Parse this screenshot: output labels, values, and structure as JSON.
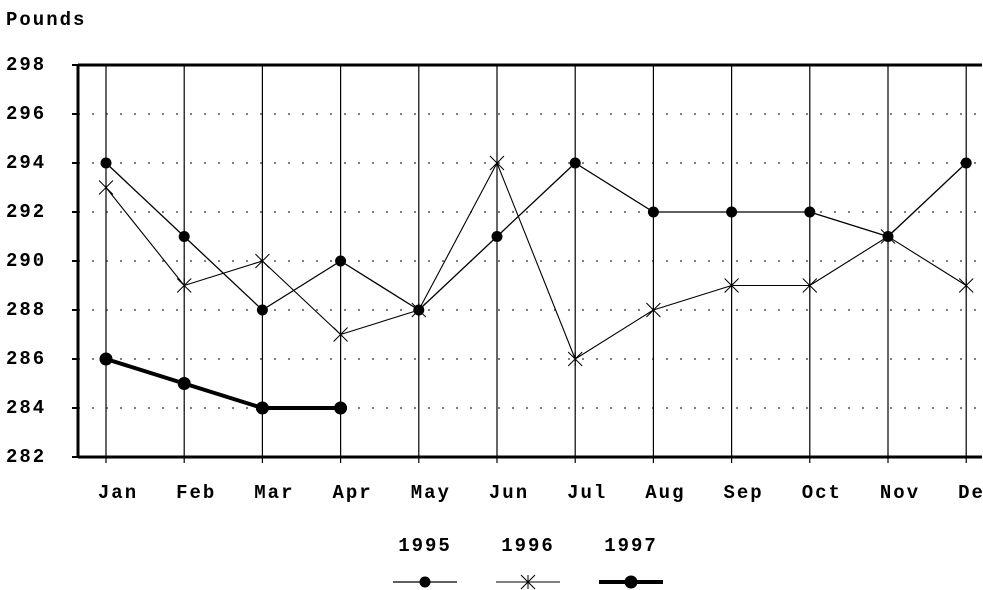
{
  "chart_data": {
    "type": "line",
    "y_label": "Pounds",
    "categories": [
      "Jan",
      "Feb",
      "Mar",
      "Apr",
      "May",
      "Jun",
      "Jul",
      "Aug",
      "Sep",
      "Oct",
      "Nov",
      "Dec"
    ],
    "series": [
      {
        "name": "1995",
        "color": "#000000",
        "marker": "dot",
        "line_width": 1.3,
        "values": [
          294,
          291,
          288,
          290,
          288,
          291,
          294,
          292,
          292,
          292,
          291,
          294
        ]
      },
      {
        "name": "1996",
        "color": "#000000",
        "marker": "star",
        "line_width": 1.1,
        "values": [
          293,
          289,
          290,
          287,
          288,
          294,
          286,
          288,
          289,
          289,
          291,
          289
        ]
      },
      {
        "name": "1997",
        "color": "#000000",
        "marker": "dot",
        "line_width": 4,
        "values": [
          286,
          285,
          284,
          284,
          null,
          null,
          null,
          null,
          null,
          null,
          null,
          null
        ]
      }
    ],
    "ylim": [
      282,
      298
    ],
    "yticks": [
      282,
      284,
      286,
      288,
      290,
      292,
      294,
      296,
      298
    ],
    "grid": true
  }
}
